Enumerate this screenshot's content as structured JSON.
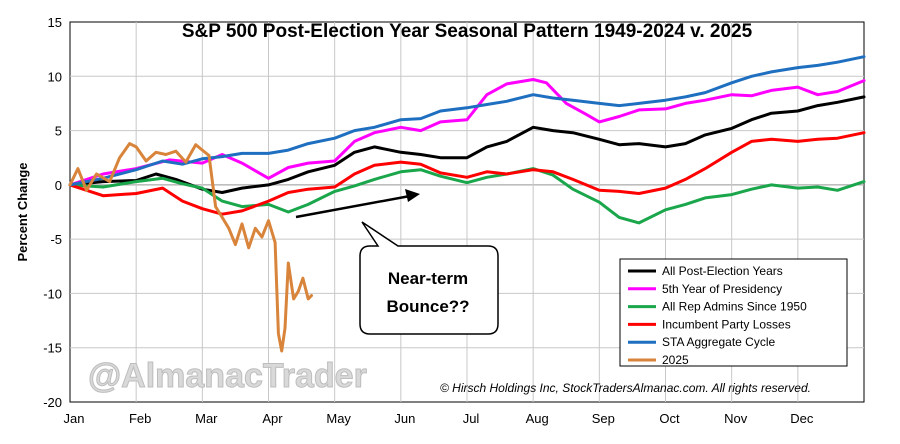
{
  "chart_data": {
    "type": "line",
    "title": "S&P 500 Post-Election Year Seasonal Pattern 1949-2024 v. 2025",
    "ylabel": "Percent Change",
    "xlabel": "",
    "ylim": [
      -20,
      15
    ],
    "yticks": [
      15,
      10,
      5,
      0,
      -5,
      -10,
      -15,
      -20
    ],
    "months": [
      "Jan",
      "Feb",
      "Mar",
      "Apr",
      "May",
      "Jun",
      "Jul",
      "Aug",
      "Sep",
      "Oct",
      "Nov",
      "Dec"
    ],
    "x_unit": "month (0 = start of Jan, 12 = end of Dec)",
    "grid": true,
    "legend_position": "bottom-right",
    "series": [
      {
        "name": "All Post-Election Years",
        "color": "#000000",
        "points": [
          [
            0,
            0
          ],
          [
            0.5,
            0.3
          ],
          [
            1,
            0.4
          ],
          [
            1.3,
            1
          ],
          [
            1.6,
            0.5
          ],
          [
            2,
            -0.4
          ],
          [
            2.3,
            -0.7
          ],
          [
            2.6,
            -0.3
          ],
          [
            3,
            0
          ],
          [
            3.3,
            0.5
          ],
          [
            3.6,
            1.2
          ],
          [
            4,
            1.8
          ],
          [
            4.3,
            3
          ],
          [
            4.6,
            3.5
          ],
          [
            5,
            3
          ],
          [
            5.3,
            2.8
          ],
          [
            5.6,
            2.5
          ],
          [
            6,
            2.5
          ],
          [
            6.3,
            3.5
          ],
          [
            6.6,
            4
          ],
          [
            7,
            5.3
          ],
          [
            7.3,
            5
          ],
          [
            7.6,
            4.8
          ],
          [
            8,
            4.2
          ],
          [
            8.3,
            3.7
          ],
          [
            8.6,
            3.8
          ],
          [
            9,
            3.5
          ],
          [
            9.3,
            3.8
          ],
          [
            9.6,
            4.6
          ],
          [
            10,
            5.2
          ],
          [
            10.3,
            6
          ],
          [
            10.6,
            6.6
          ],
          [
            11,
            6.8
          ],
          [
            11.3,
            7.3
          ],
          [
            11.6,
            7.6
          ],
          [
            12,
            8.1
          ]
        ]
      },
      {
        "name": "5th Year of Presidency",
        "color": "#ff00ff",
        "points": [
          [
            0,
            0
          ],
          [
            0.5,
            1
          ],
          [
            1,
            1.5
          ],
          [
            1.5,
            2.3
          ],
          [
            2,
            2
          ],
          [
            2.3,
            2.8
          ],
          [
            2.6,
            2
          ],
          [
            3,
            0.6
          ],
          [
            3.3,
            1.6
          ],
          [
            3.6,
            2
          ],
          [
            4,
            2.2
          ],
          [
            4.3,
            4
          ],
          [
            4.6,
            4.8
          ],
          [
            5,
            5.3
          ],
          [
            5.3,
            5
          ],
          [
            5.6,
            5.8
          ],
          [
            6,
            6
          ],
          [
            6.3,
            8.3
          ],
          [
            6.6,
            9.3
          ],
          [
            7,
            9.7
          ],
          [
            7.2,
            9.4
          ],
          [
            7.5,
            7.5
          ],
          [
            7.8,
            6.5
          ],
          [
            8,
            5.8
          ],
          [
            8.3,
            6.3
          ],
          [
            8.6,
            6.9
          ],
          [
            9,
            7
          ],
          [
            9.3,
            7.5
          ],
          [
            9.6,
            7.8
          ],
          [
            10,
            8.3
          ],
          [
            10.3,
            8.2
          ],
          [
            10.6,
            8.7
          ],
          [
            11,
            9
          ],
          [
            11.3,
            8.3
          ],
          [
            11.6,
            8.6
          ],
          [
            12,
            9.6
          ]
        ]
      },
      {
        "name": "All Rep Admins Since 1950",
        "color": "#1aa64b",
        "points": [
          [
            0,
            0
          ],
          [
            0.5,
            -0.2
          ],
          [
            1,
            0.3
          ],
          [
            1.4,
            0.6
          ],
          [
            1.7,
            0.1
          ],
          [
            2,
            -0.3
          ],
          [
            2.3,
            -1.5
          ],
          [
            2.6,
            -2
          ],
          [
            3,
            -1.8
          ],
          [
            3.3,
            -2.5
          ],
          [
            3.6,
            -1.8
          ],
          [
            4,
            -0.6
          ],
          [
            4.3,
            -0.1
          ],
          [
            4.6,
            0.5
          ],
          [
            5,
            1.2
          ],
          [
            5.3,
            1.4
          ],
          [
            5.6,
            0.8
          ],
          [
            6,
            0.2
          ],
          [
            6.3,
            0.7
          ],
          [
            6.6,
            1
          ],
          [
            7,
            1.5
          ],
          [
            7.3,
            0.9
          ],
          [
            7.6,
            -0.4
          ],
          [
            8,
            -1.6
          ],
          [
            8.3,
            -3
          ],
          [
            8.6,
            -3.5
          ],
          [
            9,
            -2.3
          ],
          [
            9.3,
            -1.8
          ],
          [
            9.6,
            -1.2
          ],
          [
            10,
            -0.9
          ],
          [
            10.3,
            -0.4
          ],
          [
            10.6,
            0
          ],
          [
            11,
            -0.3
          ],
          [
            11.3,
            -0.2
          ],
          [
            11.6,
            -0.5
          ],
          [
            12,
            0.3
          ]
        ]
      },
      {
        "name": "Incumbent Party Losses",
        "color": "#ff0000",
        "points": [
          [
            0,
            0
          ],
          [
            0.5,
            -1
          ],
          [
            1,
            -0.8
          ],
          [
            1.4,
            -0.3
          ],
          [
            1.7,
            -1.5
          ],
          [
            2,
            -2.2
          ],
          [
            2.3,
            -2.7
          ],
          [
            2.6,
            -2.4
          ],
          [
            3,
            -1.5
          ],
          [
            3.3,
            -0.7
          ],
          [
            3.6,
            -0.4
          ],
          [
            4,
            -0.2
          ],
          [
            4.3,
            1
          ],
          [
            4.6,
            1.8
          ],
          [
            5,
            2.1
          ],
          [
            5.3,
            1.9
          ],
          [
            5.6,
            1.1
          ],
          [
            6,
            0.7
          ],
          [
            6.3,
            1.2
          ],
          [
            6.6,
            1
          ],
          [
            7,
            1.4
          ],
          [
            7.3,
            1.2
          ],
          [
            7.6,
            0.5
          ],
          [
            8,
            -0.5
          ],
          [
            8.3,
            -0.6
          ],
          [
            8.6,
            -0.8
          ],
          [
            9,
            -0.3
          ],
          [
            9.3,
            0.5
          ],
          [
            9.6,
            1.5
          ],
          [
            10,
            3
          ],
          [
            10.3,
            4
          ],
          [
            10.6,
            4.2
          ],
          [
            11,
            4
          ],
          [
            11.3,
            4.2
          ],
          [
            11.6,
            4.3
          ],
          [
            12,
            4.8
          ]
        ]
      },
      {
        "name": "STA Aggregate Cycle",
        "color": "#1f6fc0",
        "points": [
          [
            0,
            0
          ],
          [
            0.5,
            0.6
          ],
          [
            1,
            1.4
          ],
          [
            1.4,
            2.2
          ],
          [
            1.7,
            1.9
          ],
          [
            2,
            2.4
          ],
          [
            2.3,
            2.6
          ],
          [
            2.6,
            2.9
          ],
          [
            3,
            2.9
          ],
          [
            3.3,
            3.2
          ],
          [
            3.6,
            3.8
          ],
          [
            4,
            4.3
          ],
          [
            4.3,
            5
          ],
          [
            4.6,
            5.3
          ],
          [
            5,
            6
          ],
          [
            5.3,
            6.1
          ],
          [
            5.6,
            6.8
          ],
          [
            6,
            7.1
          ],
          [
            6.3,
            7.4
          ],
          [
            6.6,
            7.7
          ],
          [
            7,
            8.3
          ],
          [
            7.3,
            8
          ],
          [
            7.6,
            7.8
          ],
          [
            8,
            7.5
          ],
          [
            8.3,
            7.3
          ],
          [
            8.6,
            7.5
          ],
          [
            9,
            7.8
          ],
          [
            9.3,
            8.1
          ],
          [
            9.6,
            8.5
          ],
          [
            10,
            9.4
          ],
          [
            10.3,
            10
          ],
          [
            10.6,
            10.4
          ],
          [
            11,
            10.8
          ],
          [
            11.3,
            11
          ],
          [
            11.6,
            11.3
          ],
          [
            12,
            11.8
          ]
        ]
      },
      {
        "name": "2025",
        "color": "#d9843b",
        "points": [
          [
            0,
            0
          ],
          [
            0.12,
            1.5
          ],
          [
            0.25,
            -0.5
          ],
          [
            0.4,
            1
          ],
          [
            0.6,
            0.3
          ],
          [
            0.75,
            2.5
          ],
          [
            0.9,
            3.8
          ],
          [
            1,
            3.5
          ],
          [
            1.15,
            2.2
          ],
          [
            1.3,
            3
          ],
          [
            1.45,
            2.8
          ],
          [
            1.6,
            3.1
          ],
          [
            1.75,
            2.1
          ],
          [
            1.9,
            3.7
          ],
          [
            2,
            3.2
          ],
          [
            2.1,
            2.7
          ],
          [
            2.2,
            -2
          ],
          [
            2.3,
            -3
          ],
          [
            2.4,
            -4
          ],
          [
            2.5,
            -5.5
          ],
          [
            2.6,
            -3.6
          ],
          [
            2.7,
            -5.8
          ],
          [
            2.8,
            -4
          ],
          [
            2.9,
            -4.8
          ],
          [
            3,
            -3.3
          ],
          [
            3.1,
            -5.3
          ],
          [
            3.15,
            -13.7
          ],
          [
            3.2,
            -15.3
          ],
          [
            3.25,
            -13.2
          ],
          [
            3.3,
            -7.2
          ],
          [
            3.38,
            -10.5
          ],
          [
            3.45,
            -9.8
          ],
          [
            3.52,
            -8.6
          ],
          [
            3.6,
            -10.5
          ],
          [
            3.65,
            -10.2
          ]
        ]
      }
    ]
  },
  "callout": {
    "line1": "Near-term",
    "line2": "Bounce??"
  },
  "copyright": "© Hirsch Holdings Inc, StockTradersAlmanac.com. All rights reserved.",
  "watermark": "@AlmanacTrader"
}
